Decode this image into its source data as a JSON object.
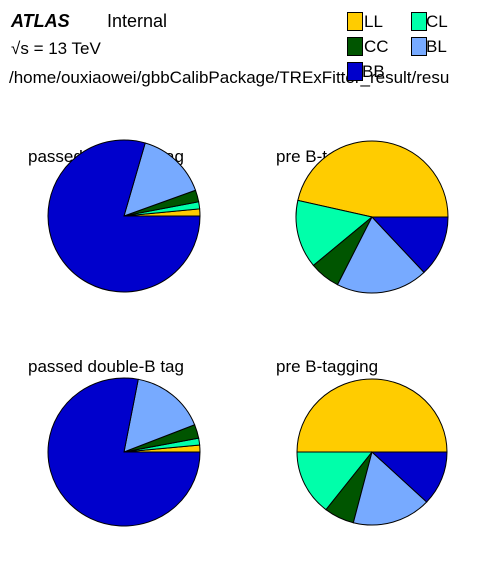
{
  "header": {
    "atlas": "ATLAS",
    "status": "Internal",
    "energy_label": "s = 13 TeV",
    "path": "/home/ouxiaowei/gbbCalibPackage/TRExFitter_result/resu"
  },
  "legend": [
    {
      "label": "LL",
      "color": "#ffcc00"
    },
    {
      "label": "CL",
      "color": "#00ffaa"
    },
    {
      "label": "CC",
      "color": "#005500"
    },
    {
      "label": "BL",
      "color": "#77aaff"
    },
    {
      "label": "BB",
      "color": "#0000cc"
    }
  ],
  "chart_data": [
    {
      "type": "pie",
      "title": "passed double-B tag",
      "slices": [
        {
          "label": "LL",
          "value": 1.5,
          "color": "#ffcc00"
        },
        {
          "label": "CL",
          "value": 1.5,
          "color": "#00ffaa"
        },
        {
          "label": "CC",
          "value": 2.5,
          "color": "#005500"
        },
        {
          "label": "BL",
          "value": 15.0,
          "color": "#77aaff"
        },
        {
          "label": "BB",
          "value": 79.5,
          "color": "#0000cc"
        }
      ]
    },
    {
      "type": "pie",
      "title": "pre B-tagging",
      "slices": [
        {
          "label": "LL",
          "value": 46.5,
          "color": "#ffcc00"
        },
        {
          "label": "CL",
          "value": 14.5,
          "color": "#00ffaa"
        },
        {
          "label": "CC",
          "value": 6.5,
          "color": "#005500"
        },
        {
          "label": "BL",
          "value": 19.5,
          "color": "#77aaff"
        },
        {
          "label": "BB",
          "value": 13.0,
          "color": "#0000cc"
        }
      ]
    },
    {
      "type": "pie",
      "title": "passed double-B tag",
      "slices": [
        {
          "label": "LL",
          "value": 1.5,
          "color": "#ffcc00"
        },
        {
          "label": "CL",
          "value": 1.5,
          "color": "#00ffaa"
        },
        {
          "label": "CC",
          "value": 3.0,
          "color": "#005500"
        },
        {
          "label": "BL",
          "value": 16.0,
          "color": "#77aaff"
        },
        {
          "label": "BB",
          "value": 78.0,
          "color": "#0000cc"
        }
      ]
    },
    {
      "type": "pie",
      "title": "pre B-tagging",
      "slices": [
        {
          "label": "LL",
          "value": 50.0,
          "color": "#ffcc00"
        },
        {
          "label": "CL",
          "value": 14.5,
          "color": "#00ffaa"
        },
        {
          "label": "CC",
          "value": 6.5,
          "color": "#005500"
        },
        {
          "label": "BL",
          "value": 17.0,
          "color": "#77aaff"
        },
        {
          "label": "BB",
          "value": 12.0,
          "color": "#0000cc"
        }
      ]
    }
  ]
}
